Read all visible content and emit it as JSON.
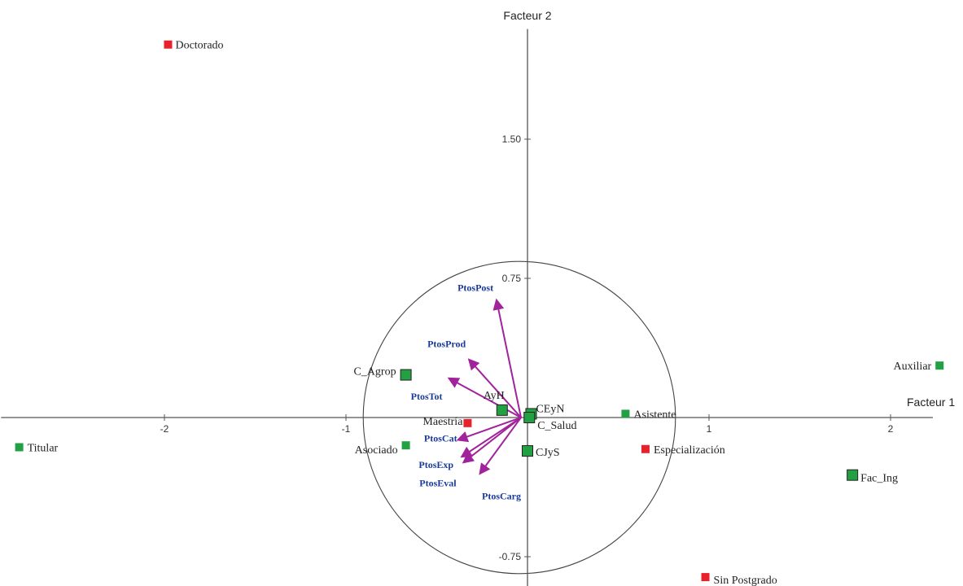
{
  "chart_data": {
    "type": "scatter",
    "title": "",
    "xlabel": "Facteur 1",
    "ylabel": "Facteur 2",
    "xticks": [
      -2,
      -1,
      1,
      2
    ],
    "yticks": [
      1.5,
      0.75,
      -0.75
    ],
    "ytick_labels": [
      "1.50",
      "0.75",
      "-0.75"
    ],
    "xlim": [
      -2.9,
      2.3
    ],
    "ylim": [
      -0.91,
      2.05
    ],
    "grid": false,
    "correlation_circle_radius": 0.86,
    "colors": {
      "modality": "#e8222d",
      "supplementary": "#22a043",
      "arrow": "#a1239c",
      "variable_label": "#1a3a9c"
    },
    "modalities": [
      {
        "label": "Doctorado",
        "x": -1.98,
        "y": 2.01
      },
      {
        "label": "Maestría",
        "x": -0.33,
        "y": -0.03
      },
      {
        "label": "Especialización",
        "x": 0.65,
        "y": -0.17
      },
      {
        "label": "Sin Postgrado",
        "x": 0.98,
        "y": -0.86
      }
    ],
    "supplementary_points": [
      {
        "label": "Titular",
        "x": -2.8,
        "y": -0.16
      },
      {
        "label": "Asociado",
        "x": -0.67,
        "y": -0.15
      },
      {
        "label": "C_Agrop",
        "x": -0.67,
        "y": 0.23
      },
      {
        "label": "AyH",
        "x": -0.14,
        "y": 0.04
      },
      {
        "label": "CEyN",
        "x": 0.02,
        "y": 0.02
      },
      {
        "label": "C_Salud",
        "x": 0.01,
        "y": 0.0
      },
      {
        "label": "CJyS",
        "x": 0.0,
        "y": -0.18
      },
      {
        "label": "Asistente",
        "x": 0.54,
        "y": 0.02
      },
      {
        "label": "Auxiliar",
        "x": 2.27,
        "y": 0.28
      },
      {
        "label": "Fac_Ing",
        "x": 1.79,
        "y": -0.31
      }
    ],
    "variables": [
      {
        "label": "PtosPost",
        "x": -0.17,
        "y": 0.63
      },
      {
        "label": "PtosProd",
        "x": -0.32,
        "y": 0.31
      },
      {
        "label": "PtosTot",
        "x": -0.43,
        "y": 0.21
      },
      {
        "label": "PtosCat",
        "x": -0.38,
        "y": -0.12
      },
      {
        "label": "PtosExp",
        "x": -0.36,
        "y": -0.21
      },
      {
        "label": "PtosEval",
        "x": -0.35,
        "y": -0.24
      },
      {
        "label": "PtosCarg",
        "x": -0.26,
        "y": -0.3
      }
    ]
  }
}
